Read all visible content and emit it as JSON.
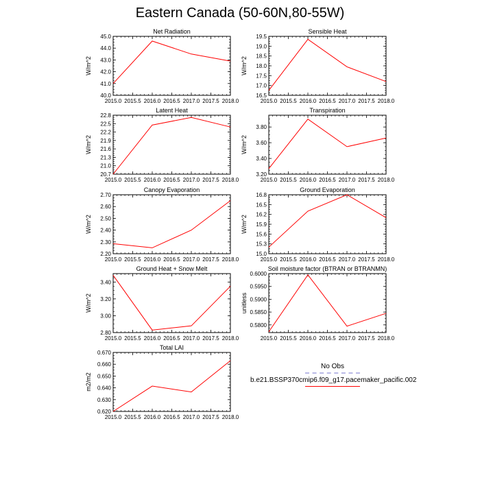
{
  "title": "Eastern Canada (50-60N,80-55W)",
  "legend": {
    "entries": [
      {
        "label": "No Obs",
        "color": "#b9b9e6",
        "style": "dashed"
      },
      {
        "label": "b.e21.BSSP370cmip6.f09_g17.pacemaker_pacific.002",
        "color": "#ff0000",
        "style": "solid"
      }
    ]
  },
  "chart_data": [
    {
      "type": "line",
      "title": "Net Radiation",
      "ylabel": "W/m^2",
      "x": [
        2015,
        2016,
        2017,
        2018
      ],
      "series": [
        {
          "name": "b.e21.BSSP370cmip6.f09_g17.pacemaker_pacific.002",
          "color": "#ff0000",
          "values": [
            41.0,
            44.6,
            43.5,
            42.9
          ]
        }
      ],
      "xlim": [
        2015,
        2018
      ],
      "ylim": [
        40.0,
        45.0
      ],
      "xticks": [
        "2015.0",
        "2015.5",
        "2016.0",
        "2016.5",
        "2017.0",
        "2017.5",
        "2018.0"
      ],
      "yticks": [
        "40.0",
        "41.0",
        "42.0",
        "43.0",
        "44.0",
        "45.0"
      ]
    },
    {
      "type": "line",
      "title": "Sensible Heat",
      "ylabel": "W/m^2",
      "x": [
        2015,
        2016,
        2017,
        2018
      ],
      "series": [
        {
          "name": "b.e21.BSSP370cmip6.f09_g17.pacemaker_pacific.002",
          "color": "#ff0000",
          "values": [
            16.75,
            19.35,
            17.95,
            17.2
          ]
        }
      ],
      "xlim": [
        2015,
        2018
      ],
      "ylim": [
        16.5,
        19.5
      ],
      "xticks": [
        "2015.0",
        "2015.5",
        "2016.0",
        "2016.5",
        "2017.0",
        "2017.5",
        "2018.0"
      ],
      "yticks": [
        "16.5",
        "17.0",
        "17.5",
        "18.0",
        "18.5",
        "19.0",
        "19.5"
      ]
    },
    {
      "type": "line",
      "title": "Latent Heat",
      "ylabel": "W/m^2",
      "x": [
        2015,
        2016,
        2017,
        2018
      ],
      "series": [
        {
          "name": "b.e21.BSSP370cmip6.f09_g17.pacemaker_pacific.002",
          "color": "#ff0000",
          "values": [
            20.7,
            22.45,
            22.72,
            22.38
          ]
        }
      ],
      "xlim": [
        2015,
        2018
      ],
      "ylim": [
        20.7,
        22.8
      ],
      "xticks": [
        "2015.0",
        "2015.5",
        "2016.0",
        "2016.5",
        "2017.0",
        "2017.5",
        "2018.0"
      ],
      "yticks": [
        "20.7",
        "21.0",
        "21.3",
        "21.6",
        "21.9",
        "22.2",
        "22.5",
        "22.8"
      ]
    },
    {
      "type": "line",
      "title": "Transpiration",
      "ylabel": "W/m^2",
      "x": [
        2015,
        2016,
        2017,
        2018
      ],
      "series": [
        {
          "name": "b.e21.BSSP370cmip6.f09_g17.pacemaker_pacific.002",
          "color": "#ff0000",
          "values": [
            3.27,
            3.9,
            3.55,
            3.66
          ]
        }
      ],
      "xlim": [
        2015,
        2018
      ],
      "ylim": [
        3.2,
        3.95
      ],
      "xticks": [
        "2015.0",
        "2015.5",
        "2016.0",
        "2016.5",
        "2017.0",
        "2017.5",
        "2018.0"
      ],
      "yticks": [
        "3.20",
        "3.40",
        "3.60",
        "3.80"
      ]
    },
    {
      "type": "line",
      "title": "Canopy Evaporation",
      "ylabel": "W/m^2",
      "x": [
        2015,
        2016,
        2017,
        2018
      ],
      "series": [
        {
          "name": "b.e21.BSSP370cmip6.f09_g17.pacemaker_pacific.002",
          "color": "#ff0000",
          "values": [
            2.285,
            2.25,
            2.4,
            2.65
          ]
        }
      ],
      "xlim": [
        2015,
        2018
      ],
      "ylim": [
        2.2,
        2.7
      ],
      "xticks": [
        "2015.0",
        "2015.5",
        "2016.0",
        "2016.5",
        "2017.0",
        "2017.5",
        "2018.0"
      ],
      "yticks": [
        "2.20",
        "2.30",
        "2.40",
        "2.50",
        "2.60",
        "2.70"
      ]
    },
    {
      "type": "line",
      "title": "Ground Evaporation",
      "ylabel": "W/m^2",
      "x": [
        2015,
        2016,
        2017,
        2018
      ],
      "series": [
        {
          "name": "b.e21.BSSP370cmip6.f09_g17.pacemaker_pacific.002",
          "color": "#ff0000",
          "values": [
            15.2,
            16.3,
            16.8,
            16.1
          ]
        }
      ],
      "xlim": [
        2015,
        2018
      ],
      "ylim": [
        15.0,
        16.8
      ],
      "xticks": [
        "2015.0",
        "2015.5",
        "2016.0",
        "2016.5",
        "2017.0",
        "2017.5",
        "2018.0"
      ],
      "yticks": [
        "15.0",
        "15.3",
        "15.6",
        "15.9",
        "16.2",
        "16.5",
        "16.8"
      ]
    },
    {
      "type": "line",
      "title": "Ground Heat + Snow Melt",
      "ylabel": "W/m^2",
      "x": [
        2015,
        2016,
        2017,
        2018
      ],
      "series": [
        {
          "name": "b.e21.BSSP370cmip6.f09_g17.pacemaker_pacific.002",
          "color": "#ff0000",
          "values": [
            3.48,
            2.83,
            2.88,
            3.35
          ]
        }
      ],
      "xlim": [
        2015,
        2018
      ],
      "ylim": [
        2.8,
        3.5
      ],
      "xticks": [
        "2015.0",
        "2015.5",
        "2016.0",
        "2016.5",
        "2017.0",
        "2017.5",
        "2018.0"
      ],
      "yticks": [
        "2.80",
        "3.00",
        "3.20",
        "3.40"
      ]
    },
    {
      "type": "line",
      "title": "Soil moisture factor (BTRAN or BTRANMN)",
      "ylabel": "unitless",
      "x": [
        2015,
        2016,
        2017,
        2018
      ],
      "series": [
        {
          "name": "b.e21.BSSP370cmip6.f09_g17.pacemaker_pacific.002",
          "color": "#ff0000",
          "values": [
            0.5773,
            0.5995,
            0.5795,
            0.5845
          ]
        }
      ],
      "xlim": [
        2015,
        2018
      ],
      "ylim": [
        0.577,
        0.6
      ],
      "xticks": [
        "2015.0",
        "2015.5",
        "2016.0",
        "2016.5",
        "2017.0",
        "2017.5",
        "2018.0"
      ],
      "yticks": [
        "0.5800",
        "0.5850",
        "0.5900",
        "0.5950",
        "0.6000"
      ]
    },
    {
      "type": "line",
      "title": "Total LAI",
      "ylabel": "m2/m2",
      "x": [
        2015,
        2016,
        2017,
        2018
      ],
      "series": [
        {
          "name": "b.e21.BSSP370cmip6.f09_g17.pacemaker_pacific.002",
          "color": "#ff0000",
          "values": [
            0.62,
            0.6415,
            0.6365,
            0.663
          ]
        }
      ],
      "xlim": [
        2015,
        2018
      ],
      "ylim": [
        0.62,
        0.67
      ],
      "xticks": [
        "2015.0",
        "2015.5",
        "2016.0",
        "2016.5",
        "2017.0",
        "2017.5",
        "2018.0"
      ],
      "yticks": [
        "0.620",
        "0.630",
        "0.640",
        "0.650",
        "0.660",
        "0.670"
      ]
    }
  ]
}
